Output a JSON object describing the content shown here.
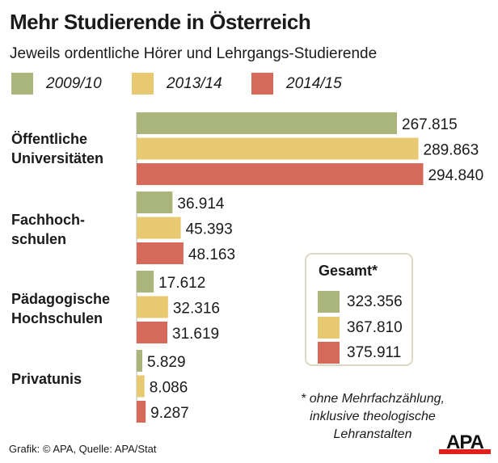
{
  "chart_data": {
    "type": "bar",
    "orientation": "horizontal",
    "title": "Mehr Studierende in Österreich",
    "subtitle": "Jeweils ordentliche Hörer und Lehrgangs-Studierende",
    "categories": [
      [
        "Öffentliche",
        "Universitäten"
      ],
      [
        "Fachhoch-",
        "schulen"
      ],
      [
        "Pädagogische",
        "Hochschulen"
      ],
      [
        "Privatunis"
      ]
    ],
    "series": [
      {
        "name": "2009/10",
        "color": "#a9b57b",
        "values": [
          267815,
          36914,
          17612,
          5829
        ],
        "labels": [
          "267.815",
          "36.914",
          "17.612",
          "5.829"
        ]
      },
      {
        "name": "2013/14",
        "color": "#e7c971",
        "values": [
          289863,
          45393,
          32316,
          8086
        ],
        "labels": [
          "289.863",
          "45.393",
          "32.316",
          "8.086"
        ]
      },
      {
        "name": "2014/15",
        "color": "#d66a5a",
        "values": [
          294840,
          48163,
          31619,
          9287
        ],
        "labels": [
          "294.840",
          "48.163",
          "31.619",
          "9.287"
        ]
      }
    ],
    "legend_placement": "top",
    "grid": false,
    "totals": {
      "title": "Gesamt*",
      "values": [
        "323.356",
        "367.810",
        "375.911"
      ]
    },
    "footnote": [
      "* ohne Mehrfachzählung,",
      "inklusive theologische",
      "Lehranstalten"
    ],
    "source": "Grafik: © APA, Quelle: APA/Stat"
  },
  "logo": "APA"
}
